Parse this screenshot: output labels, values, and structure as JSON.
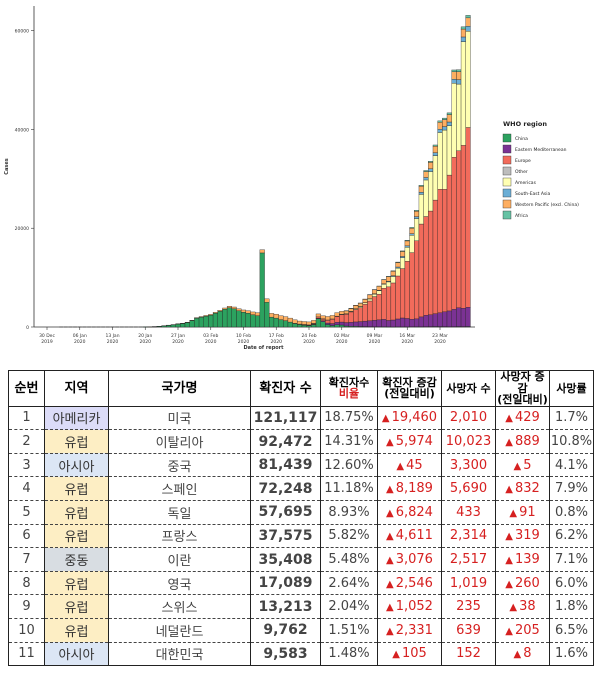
{
  "chart_data": {
    "type": "bar",
    "stacked": true,
    "title": "",
    "xlabel": "Date of report",
    "ylabel": "Cases",
    "ylim": [
      0,
      65000
    ],
    "y_ticks": [
      0,
      20000,
      40000,
      60000
    ],
    "x_ticks": [
      {
        "day": 0,
        "label1": "30 Dec",
        "label2": "2019"
      },
      {
        "day": 7,
        "label1": "06 Jan",
        "label2": "2020"
      },
      {
        "day": 14,
        "label1": "13 Jan",
        "label2": "2020"
      },
      {
        "day": 21,
        "label1": "20 Jan",
        "label2": "2020"
      },
      {
        "day": 28,
        "label1": "27 Jan",
        "label2": "2020"
      },
      {
        "day": 35,
        "label1": "03 Feb",
        "label2": "2020"
      },
      {
        "day": 42,
        "label1": "10 Feb",
        "label2": "2020"
      },
      {
        "day": 49,
        "label1": "17 Feb",
        "label2": "2020"
      },
      {
        "day": 56,
        "label1": "24 Feb",
        "label2": "2020"
      },
      {
        "day": 63,
        "label1": "02 Mar",
        "label2": "2020"
      },
      {
        "day": 70,
        "label1": "09 Mar",
        "label2": "2020"
      },
      {
        "day": 77,
        "label1": "16 Mar",
        "label2": "2020"
      },
      {
        "day": 84,
        "label1": "23 Mar",
        "label2": "2020"
      }
    ],
    "start_day": 3,
    "legend_title": "WHO region",
    "legend_position": "right",
    "series": [
      {
        "name": "China",
        "color": "#2ca25f",
        "values": [
          0,
          0,
          0,
          0,
          0,
          0,
          0,
          0,
          0,
          0,
          0,
          0,
          0,
          0,
          0,
          0,
          0,
          0,
          20,
          40,
          80,
          150,
          250,
          350,
          450,
          600,
          700,
          900,
          1300,
          1800,
          2000,
          2200,
          2400,
          2800,
          3200,
          3600,
          3900,
          3700,
          3300,
          3000,
          2800,
          2500,
          2300,
          15000,
          5000,
          2000,
          1800,
          1500,
          1300,
          1000,
          700,
          500,
          400,
          300,
          500,
          1700,
          1100,
          500,
          300,
          450,
          400,
          200,
          150,
          130,
          100,
          90,
          70,
          60,
          50,
          40,
          30,
          20,
          30,
          30,
          30,
          60,
          50,
          50,
          70,
          80,
          100,
          90,
          80,
          60,
          70,
          90,
          80,
          100
        ]
      },
      {
        "name": "Eastern Mediterranean",
        "color": "#7b3294",
        "values": [
          0,
          0,
          0,
          0,
          0,
          0,
          0,
          0,
          0,
          0,
          0,
          0,
          0,
          0,
          0,
          0,
          0,
          0,
          0,
          0,
          0,
          0,
          0,
          0,
          0,
          0,
          0,
          0,
          0,
          0,
          0,
          0,
          0,
          0,
          0,
          0,
          0,
          0,
          0,
          0,
          0,
          0,
          0,
          0,
          0,
          0,
          0,
          0,
          0,
          0,
          0,
          0,
          5,
          20,
          50,
          100,
          150,
          300,
          400,
          500,
          600,
          700,
          800,
          900,
          1000,
          1100,
          1200,
          1300,
          1400,
          1500,
          1300,
          1400,
          1600,
          1800,
          1700,
          1500,
          1600,
          2000,
          2300,
          2400,
          2600,
          2800,
          3000,
          3200,
          3500,
          3800,
          3700,
          3900
        ]
      },
      {
        "name": "Europe",
        "color": "#f26b5b",
        "values": [
          0,
          0,
          0,
          0,
          0,
          0,
          0,
          0,
          0,
          0,
          0,
          0,
          0,
          0,
          0,
          0,
          0,
          0,
          0,
          0,
          0,
          0,
          0,
          0,
          0,
          0,
          0,
          0,
          0,
          0,
          0,
          0,
          0,
          0,
          0,
          0,
          0,
          0,
          0,
          0,
          0,
          0,
          0,
          0,
          0,
          0,
          0,
          0,
          0,
          0,
          0,
          0,
          20,
          60,
          150,
          250,
          400,
          600,
          900,
          1200,
          1500,
          1700,
          2100,
          2500,
          2800,
          3400,
          4000,
          4800,
          5200,
          6300,
          6800,
          7500,
          8700,
          10000,
          11600,
          13500,
          15800,
          18800,
          20000,
          21000,
          23000,
          25000,
          24800,
          27500,
          30800,
          31800,
          33000,
          36400
        ]
      },
      {
        "name": "Other",
        "color": "#bdbdbd",
        "values": [
          0,
          0,
          0,
          0,
          0,
          0,
          0,
          0,
          0,
          0,
          0,
          0,
          0,
          0,
          0,
          0,
          0,
          0,
          0,
          0,
          0,
          0,
          0,
          0,
          0,
          0,
          0,
          0,
          0,
          0,
          0,
          0,
          0,
          0,
          0,
          0,
          0,
          0,
          0,
          0,
          0,
          0,
          0,
          0,
          0,
          0,
          0,
          0,
          0,
          0,
          50,
          100,
          80,
          50,
          30,
          0,
          0,
          0,
          0,
          0,
          0,
          0,
          0,
          0,
          0,
          0,
          0,
          0,
          0,
          0,
          0,
          0,
          0,
          0,
          0,
          0,
          0,
          0,
          0,
          0,
          0,
          0,
          0,
          0,
          0,
          0,
          0,
          0
        ]
      },
      {
        "name": "Americas",
        "color": "#ffffb2",
        "values": [
          0,
          0,
          0,
          0,
          0,
          0,
          0,
          0,
          0,
          0,
          0,
          0,
          0,
          0,
          0,
          0,
          0,
          0,
          0,
          0,
          0,
          0,
          0,
          0,
          0,
          0,
          0,
          0,
          0,
          0,
          0,
          0,
          0,
          0,
          0,
          0,
          0,
          0,
          0,
          0,
          0,
          0,
          0,
          0,
          0,
          0,
          0,
          0,
          0,
          0,
          0,
          0,
          0,
          0,
          0,
          0,
          10,
          20,
          30,
          40,
          60,
          80,
          100,
          150,
          200,
          300,
          400,
          500,
          700,
          800,
          1000,
          1300,
          1600,
          2200,
          2800,
          3500,
          4500,
          6000,
          7400,
          8000,
          9000,
          11500,
          12000,
          10000,
          15000,
          13500,
          21000,
          19500
        ]
      },
      {
        "name": "South-East Asia",
        "color": "#6baed6",
        "values": [
          0,
          0,
          0,
          0,
          0,
          0,
          0,
          0,
          0,
          0,
          0,
          0,
          0,
          0,
          0,
          0,
          0,
          0,
          0,
          0,
          0,
          0,
          0,
          0,
          0,
          0,
          0,
          0,
          0,
          0,
          0,
          0,
          0,
          0,
          0,
          0,
          0,
          0,
          0,
          0,
          0,
          0,
          0,
          0,
          0,
          0,
          0,
          0,
          0,
          0,
          0,
          0,
          0,
          0,
          0,
          0,
          5,
          5,
          5,
          10,
          10,
          15,
          20,
          30,
          40,
          50,
          60,
          80,
          100,
          120,
          150,
          180,
          220,
          260,
          300,
          350,
          400,
          450,
          500,
          550,
          600,
          650,
          700,
          750,
          800,
          900,
          950,
          1000
        ]
      },
      {
        "name": "Western Pacific (excl. China)",
        "color": "#fdae61",
        "values": [
          0,
          0,
          0,
          0,
          0,
          0,
          0,
          0,
          0,
          0,
          0,
          0,
          0,
          0,
          0,
          0,
          0,
          0,
          0,
          5,
          10,
          15,
          20,
          30,
          40,
          50,
          60,
          70,
          80,
          100,
          120,
          140,
          160,
          180,
          200,
          250,
          300,
          350,
          400,
          450,
          500,
          550,
          600,
          650,
          700,
          750,
          800,
          800,
          800,
          800,
          700,
          600,
          600,
          600,
          600,
          600,
          600,
          700,
          700,
          700,
          600,
          600,
          600,
          700,
          700,
          700,
          800,
          800,
          800,
          800,
          900,
          900,
          900,
          1000,
          1000,
          1100,
          1100,
          1200,
          1200,
          1300,
          1300,
          1400,
          1400,
          1500,
          1500,
          1600,
          1600,
          1700
        ]
      },
      {
        "name": "Africa",
        "color": "#66c2a4",
        "values": [
          0,
          0,
          0,
          0,
          0,
          0,
          0,
          0,
          0,
          0,
          0,
          0,
          0,
          0,
          0,
          0,
          0,
          0,
          0,
          0,
          0,
          0,
          0,
          0,
          0,
          0,
          0,
          0,
          0,
          0,
          0,
          0,
          0,
          0,
          0,
          0,
          0,
          0,
          0,
          0,
          0,
          0,
          0,
          0,
          0,
          0,
          0,
          0,
          0,
          0,
          0,
          0,
          0,
          0,
          0,
          0,
          0,
          0,
          0,
          0,
          0,
          5,
          10,
          10,
          20,
          20,
          30,
          40,
          50,
          60,
          70,
          80,
          100,
          120,
          140,
          160,
          180,
          200,
          220,
          240,
          260,
          300,
          320,
          350,
          380,
          400,
          450,
          500
        ]
      }
    ]
  },
  "table": {
    "headers": {
      "rank": "순번",
      "region": "지역",
      "country": "국가명",
      "cases": "확진자 수",
      "ratio_l1": "확진자수",
      "ratio_l2": "비율",
      "inc_l1": "확진자 증감",
      "inc_l2": "(전일대비)",
      "deaths": "사망자 수",
      "dinc_l1": "사망자 증감",
      "dinc_l2": "(전일대비)",
      "rate": "사망률"
    },
    "increase_symbol": "▲",
    "rows": [
      {
        "rank": "1",
        "region": "아메리카",
        "region_type": "americas",
        "country": "미국",
        "cases": "121,117",
        "ratio": "18.75%",
        "increase": "19,460",
        "deaths": "2,010",
        "death_increase": "429",
        "death_rate": "1.7%"
      },
      {
        "rank": "2",
        "region": "유럽",
        "region_type": "europe",
        "country": "이탈리아",
        "cases": "92,472",
        "ratio": "14.31%",
        "increase": "5,974",
        "deaths": "10,023",
        "death_increase": "889",
        "death_rate": "10.8%"
      },
      {
        "rank": "3",
        "region": "아시아",
        "region_type": "asia",
        "country": "중국",
        "cases": "81,439",
        "ratio": "12.60%",
        "increase": "45",
        "deaths": "3,300",
        "death_increase": "5",
        "death_rate": "4.1%"
      },
      {
        "rank": "4",
        "region": "유럽",
        "region_type": "europe",
        "country": "스페인",
        "cases": "72,248",
        "ratio": "11.18%",
        "increase": "8,189",
        "deaths": "5,690",
        "death_increase": "832",
        "death_rate": "7.9%"
      },
      {
        "rank": "5",
        "region": "유럽",
        "region_type": "europe",
        "country": "독일",
        "cases": "57,695",
        "ratio": "8.93%",
        "increase": "6,824",
        "deaths": "433",
        "death_increase": "91",
        "death_rate": "0.8%"
      },
      {
        "rank": "6",
        "region": "유럽",
        "region_type": "europe",
        "country": "프랑스",
        "cases": "37,575",
        "ratio": "5.82%",
        "increase": "4,611",
        "deaths": "2,314",
        "death_increase": "319",
        "death_rate": "6.2%"
      },
      {
        "rank": "7",
        "region": "중동",
        "region_type": "me",
        "country": "이란",
        "cases": "35,408",
        "ratio": "5.48%",
        "increase": "3,076",
        "deaths": "2,517",
        "death_increase": "139",
        "death_rate": "7.1%"
      },
      {
        "rank": "8",
        "region": "유럽",
        "region_type": "europe",
        "country": "영국",
        "cases": "17,089",
        "ratio": "2.64%",
        "increase": "2,546",
        "deaths": "1,019",
        "death_increase": "260",
        "death_rate": "6.0%"
      },
      {
        "rank": "9",
        "region": "유럽",
        "region_type": "europe",
        "country": "스위스",
        "cases": "13,213",
        "ratio": "2.04%",
        "increase": "1,052",
        "deaths": "235",
        "death_increase": "38",
        "death_rate": "1.8%"
      },
      {
        "rank": "10",
        "region": "유럽",
        "region_type": "europe",
        "country": "네덜란드",
        "cases": "9,762",
        "ratio": "1.51%",
        "increase": "2,331",
        "deaths": "639",
        "death_increase": "205",
        "death_rate": "6.5%"
      },
      {
        "rank": "11",
        "region": "아시아",
        "region_type": "asia",
        "country": "대한민국",
        "cases": "9,583",
        "ratio": "1.48%",
        "increase": "105",
        "deaths": "152",
        "death_increase": "8",
        "death_rate": "1.6%"
      }
    ]
  }
}
